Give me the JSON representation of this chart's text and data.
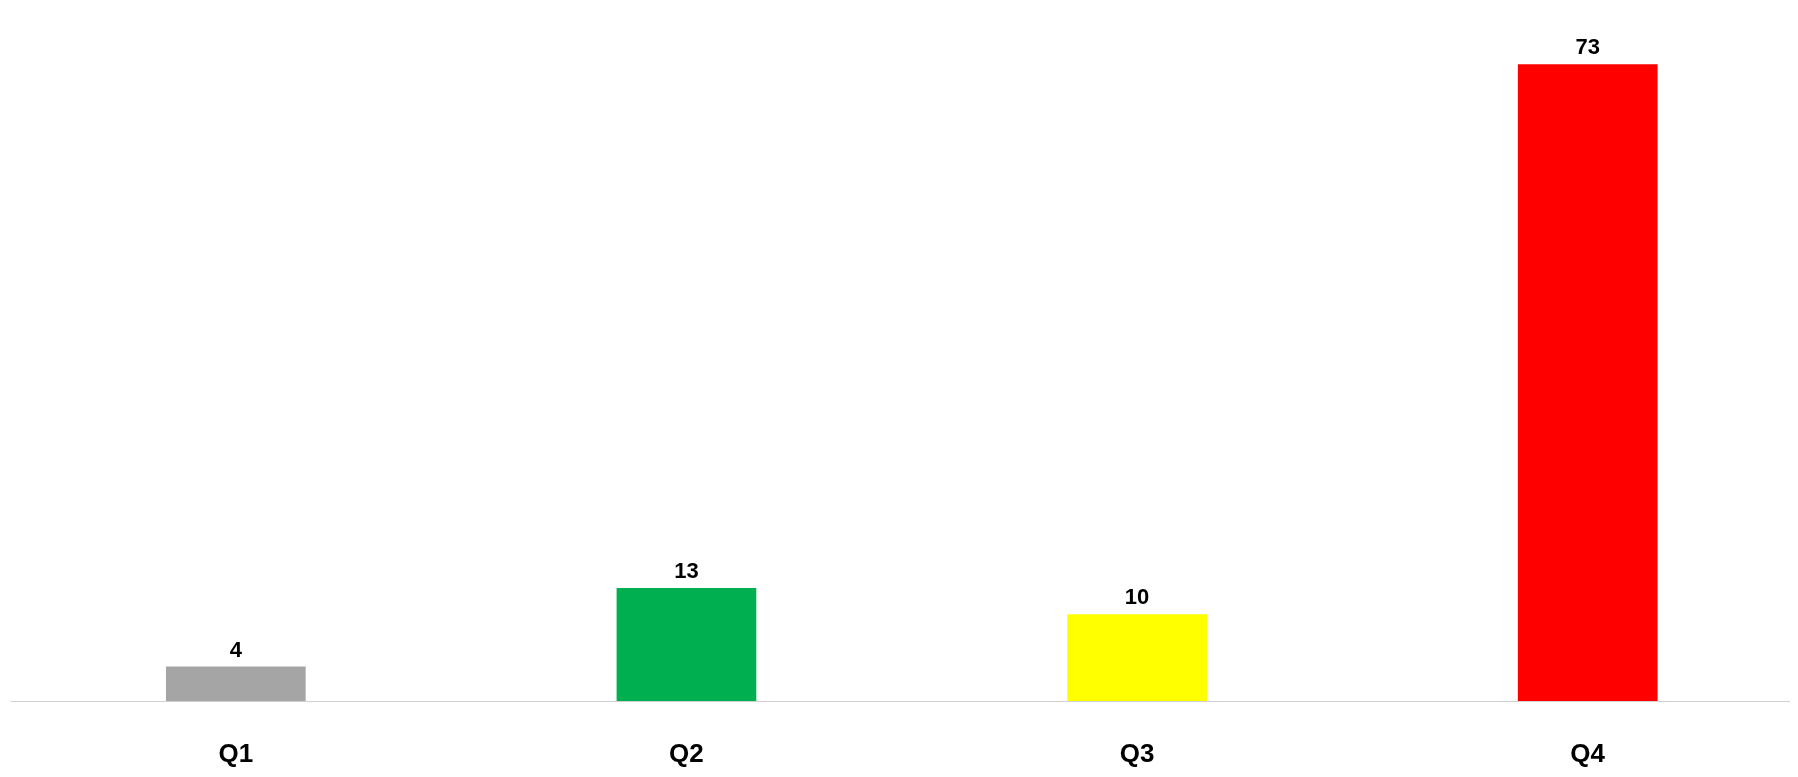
{
  "chart_data": {
    "type": "bar",
    "categories": [
      "Q1",
      "Q2",
      "Q3",
      "Q4"
    ],
    "values": [
      4,
      13,
      10,
      73
    ],
    "colors": [
      "#a5a5a5",
      "#00b050",
      "#ffff00",
      "#ff0000"
    ],
    "data_labels": true,
    "grid": false
  }
}
